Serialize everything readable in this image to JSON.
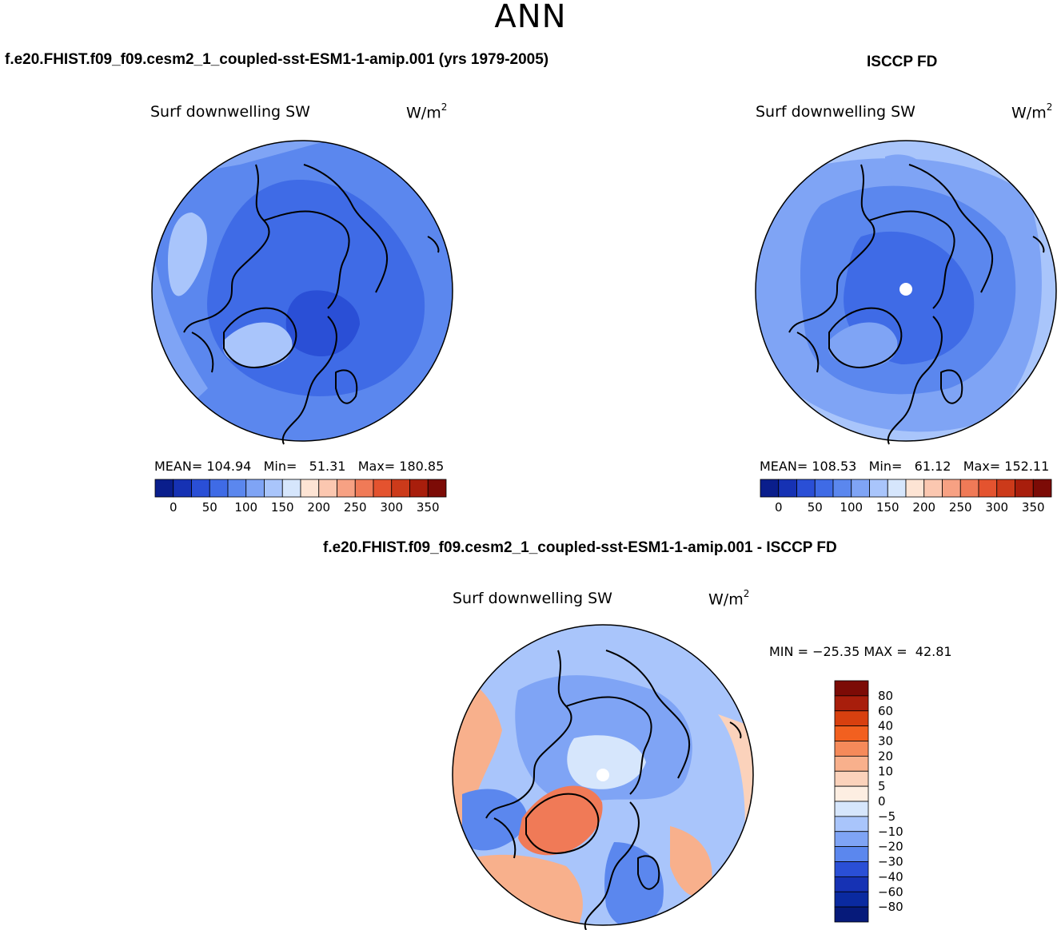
{
  "figure_title": "ANN",
  "variable": "Surf downwelling SW",
  "units_base": "W/m",
  "units_exp": "2",
  "panels": {
    "model": {
      "title": "f.e20.FHIST.f09_f09.cesm2_1_coupled-sst-ESM1-1-amip.001 (yrs 1979-2005)",
      "mean_label": "MEAN=",
      "mean": "104.94",
      "min_label": "Min=",
      "min": "51.31",
      "max_label": "Max=",
      "max": "180.85"
    },
    "obs": {
      "title": "ISCCP FD",
      "mean_label": "MEAN=",
      "mean": "108.53",
      "min_label": "Min=",
      "min": "61.12",
      "max_label": "Max=",
      "max": "152.11"
    },
    "diff": {
      "title": "f.e20.FHIST.f09_f09.cesm2_1_coupled-sst-ESM1-1-amip.001 - ISCCP FD",
      "min_label": "MIN =",
      "min": "−25.35",
      "max_label": "MAX =",
      "max": "42.81"
    }
  },
  "chart_data": [
    {
      "type": "heatmap",
      "projection": "north-polar-stereographic",
      "title": "f.e20.FHIST.f09_f09.cesm2_1_coupled-sst-ESM1-1-amip.001 (yrs 1979-2005)",
      "variable": "Surf downwelling SW",
      "units": "W/m2",
      "mean": 104.94,
      "min": 51.31,
      "max": 180.85,
      "colorbar": {
        "orientation": "horizontal",
        "tick_labels": [
          "0",
          "50",
          "100",
          "150",
          "200",
          "250",
          "300",
          "350"
        ],
        "colors": [
          "#0a1e8c",
          "#1632b4",
          "#2a4fd6",
          "#3f6be6",
          "#5b87ee",
          "#7fa4f5",
          "#a9c5fb",
          "#d6e6fc",
          "#fde4d4",
          "#fbc7b0",
          "#f7a183",
          "#f07a57",
          "#e4532f",
          "#cc3a1a",
          "#a81e0c",
          "#7c0b06"
        ]
      }
    },
    {
      "type": "heatmap",
      "projection": "north-polar-stereographic",
      "title": "ISCCP FD",
      "variable": "Surf downwelling SW",
      "units": "W/m2",
      "mean": 108.53,
      "min": 61.12,
      "max": 152.11,
      "colorbar": {
        "orientation": "horizontal",
        "tick_labels": [
          "0",
          "50",
          "100",
          "150",
          "200",
          "250",
          "300",
          "350"
        ],
        "colors": [
          "#0a1e8c",
          "#1632b4",
          "#2a4fd6",
          "#3f6be6",
          "#5b87ee",
          "#7fa4f5",
          "#a9c5fb",
          "#d6e6fc",
          "#fde4d4",
          "#fbc7b0",
          "#f7a183",
          "#f07a57",
          "#e4532f",
          "#cc3a1a",
          "#a81e0c",
          "#7c0b06"
        ]
      }
    },
    {
      "type": "heatmap",
      "projection": "north-polar-stereographic",
      "title": "f.e20.FHIST.f09_f09.cesm2_1_coupled-sst-ESM1-1-amip.001 - ISCCP FD",
      "variable": "Surf downwelling SW",
      "units": "W/m2",
      "min": -25.35,
      "max": 42.81,
      "colorbar": {
        "orientation": "vertical",
        "tick_labels": [
          "80",
          "60",
          "40",
          "30",
          "20",
          "10",
          "5",
          "0",
          "−5",
          "−10",
          "−20",
          "−30",
          "−40",
          "−60",
          "−80"
        ],
        "colors": [
          "#7c0b06",
          "#a81e0c",
          "#d8400f",
          "#f2601f",
          "#f58a5a",
          "#f8b08c",
          "#fbd2bb",
          "#fdeee2",
          "#d6e6fc",
          "#a9c5fb",
          "#7fa4f5",
          "#5b87ee",
          "#2a4fd6",
          "#1632b4",
          "#0a2aa0",
          "#061a7a"
        ]
      }
    }
  ]
}
